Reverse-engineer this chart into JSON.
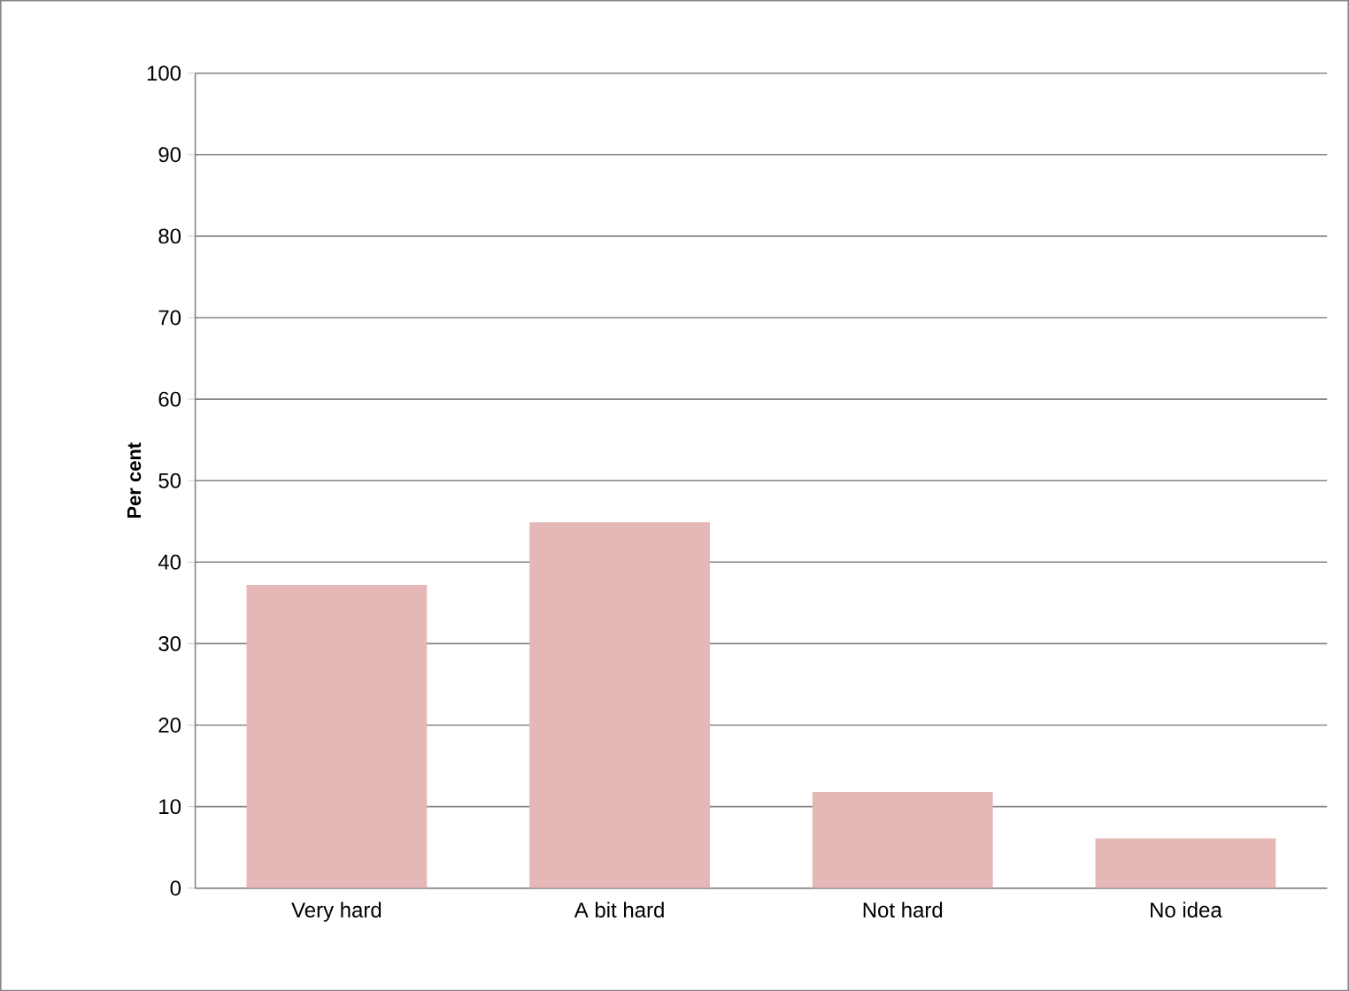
{
  "chart_data": {
    "type": "bar",
    "ylabel": "Per cent",
    "categories": [
      "Very hard",
      "A bit hard",
      "Not hard",
      "No idea"
    ],
    "values": [
      37.2,
      44.9,
      11.8,
      6.1
    ],
    "color": "#e6b7b7",
    "ylim": [
      0,
      100
    ],
    "yticks": [
      0,
      10,
      20,
      30,
      40,
      50,
      60,
      70,
      80,
      90,
      100
    ],
    "grid": "y"
  }
}
